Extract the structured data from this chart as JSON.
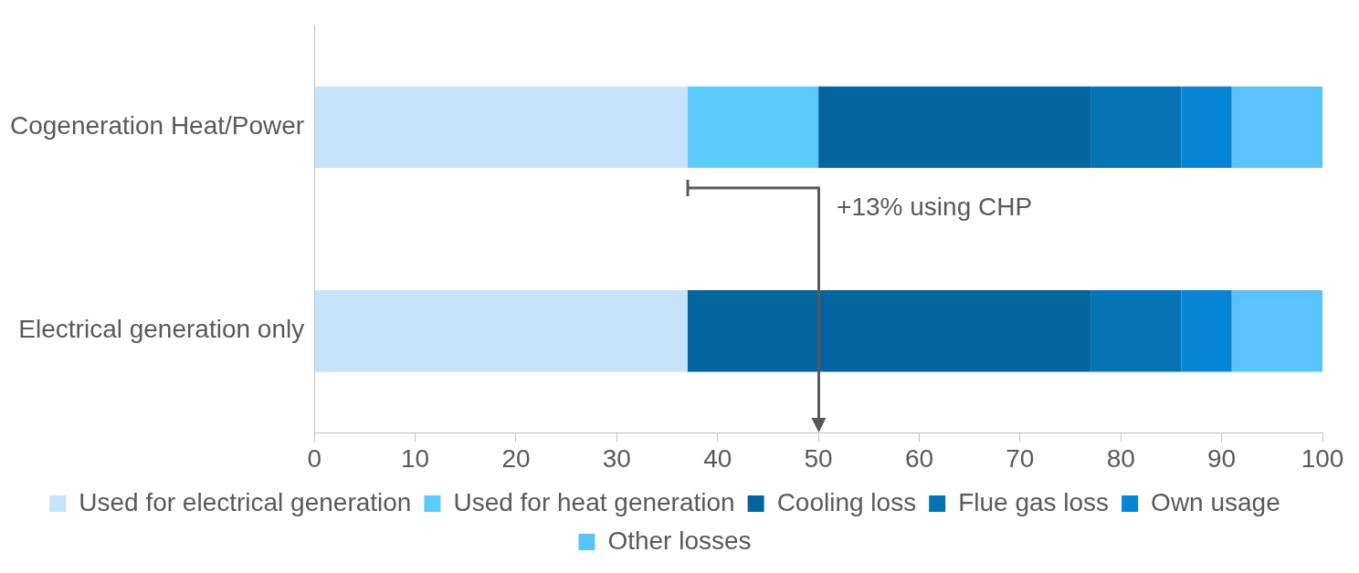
{
  "chart_data": {
    "type": "bar",
    "orientation": "horizontal",
    "stacked": true,
    "categories": [
      "Cogeneration Heat/Power",
      "Electrical generation only"
    ],
    "series": [
      {
        "name": "Used for electrical generation",
        "color": "#c5e3fa",
        "values": [
          37,
          37
        ]
      },
      {
        "name": "Used for heat generation",
        "color": "#5bcbfd",
        "values": [
          13,
          0
        ]
      },
      {
        "name": "Cooling loss",
        "color": "#0565a0",
        "values": [
          27,
          40
        ]
      },
      {
        "name": "Flue gas loss",
        "color": "#0673b5",
        "values": [
          9,
          9
        ]
      },
      {
        "name": "Own usage",
        "color": "#0585d4",
        "values": [
          5,
          5
        ]
      },
      {
        "name": "Other losses",
        "color": "#5bc2fd",
        "values": [
          9,
          9
        ]
      }
    ],
    "xlim": [
      0,
      100
    ],
    "xticks": [
      0,
      10,
      20,
      30,
      40,
      50,
      60,
      70,
      80,
      90,
      100
    ],
    "grid": false,
    "legend": "bottom",
    "annotations": [
      "+13% using CHP"
    ]
  }
}
